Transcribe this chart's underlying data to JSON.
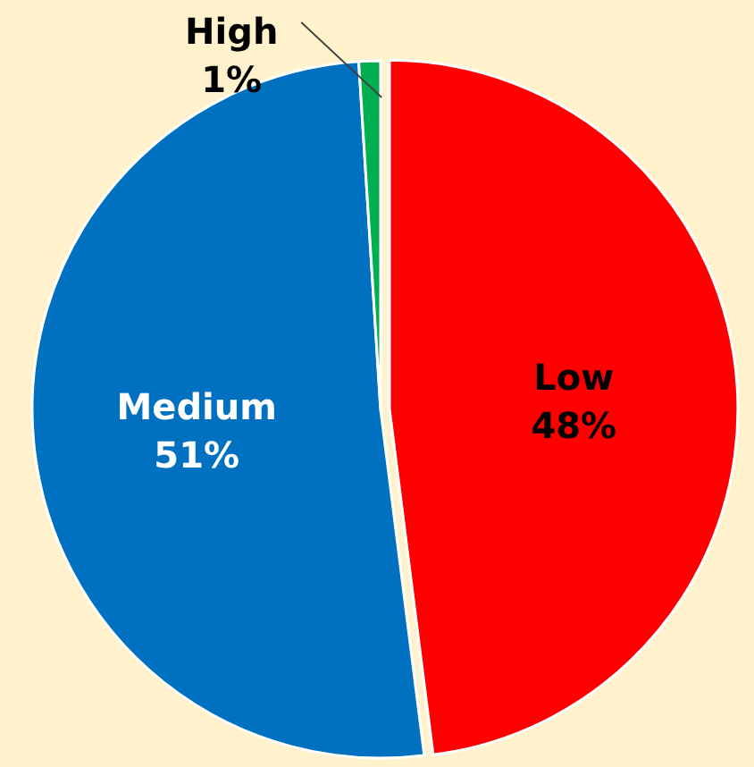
{
  "chart_data": {
    "type": "pie",
    "categories": [
      "Low",
      "Medium",
      "High"
    ],
    "values": [
      48,
      51,
      1
    ],
    "colors": [
      "#ff0000",
      "#0070c0",
      "#00b050"
    ],
    "value_labels": [
      "48%",
      "51%",
      "1%"
    ]
  }
}
